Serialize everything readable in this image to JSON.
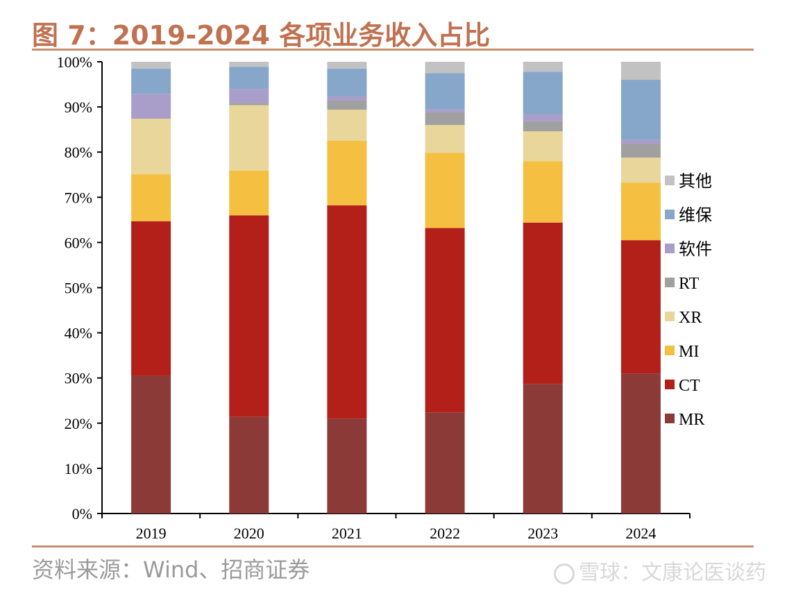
{
  "title": "图 7：2019-2024 各项业务收入占比",
  "source": "资料来源：Wind、招商证券",
  "watermark": "雪球：文康论医谈药",
  "watermark_icon": "snowball-logo-icon",
  "chart_data": {
    "type": "bar",
    "stacked": true,
    "categories": [
      "2019",
      "2020",
      "2021",
      "2022",
      "2023",
      "2024"
    ],
    "ylim": [
      0,
      100
    ],
    "yticks": [
      "0%",
      "10%",
      "20%",
      "30%",
      "40%",
      "50%",
      "60%",
      "70%",
      "80%",
      "90%",
      "100%"
    ],
    "grid": false,
    "legend_position": "right",
    "series": [
      {
        "name": "MR",
        "color": "#8b3a37",
        "values": [
          30.5,
          21.4,
          21.0,
          22.4,
          28.7,
          31.0
        ]
      },
      {
        "name": "CT",
        "color": "#b32019",
        "values": [
          34.2,
          44.6,
          47.2,
          40.8,
          35.7,
          29.5
        ]
      },
      {
        "name": "MI",
        "color": "#f5bf42",
        "values": [
          10.4,
          9.9,
          14.3,
          16.6,
          13.6,
          12.7
        ]
      },
      {
        "name": "XR",
        "color": "#e8d69a",
        "values": [
          12.3,
          14.5,
          6.9,
          6.2,
          6.6,
          5.6
        ]
      },
      {
        "name": "RT",
        "color": "#a0a0a0",
        "values": [
          0.0,
          0.5,
          2.0,
          2.8,
          2.2,
          3.0
        ]
      },
      {
        "name": "软件",
        "color": "#a99ec9",
        "values": [
          5.5,
          3.1,
          1.0,
          0.7,
          1.6,
          0.9
        ]
      },
      {
        "name": "维保",
        "color": "#87a7ca",
        "values": [
          5.6,
          4.9,
          6.1,
          8.0,
          9.4,
          13.3
        ]
      },
      {
        "name": "其他",
        "color": "#c2c2c2",
        "values": [
          1.5,
          1.1,
          1.5,
          2.5,
          2.2,
          4.0
        ]
      }
    ]
  }
}
